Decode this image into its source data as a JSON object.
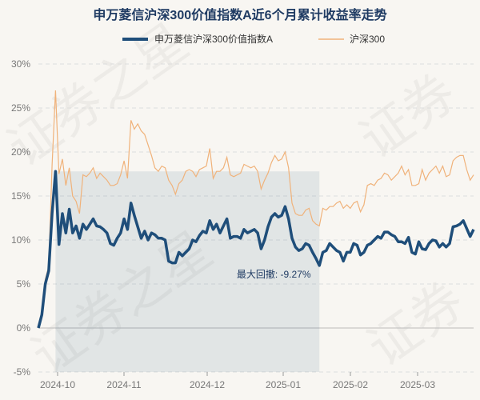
{
  "chart_data": {
    "type": "line",
    "title": "申万菱信沪深300价值指数A近6个月累计收益率走势",
    "legend_position": "top",
    "grid": true,
    "ylim": [
      -5,
      30
    ],
    "yticks": [
      "30%",
      "25%",
      "20%",
      "15%",
      "10%",
      "5%",
      "0%",
      "-5%"
    ],
    "ytick_values": [
      30,
      25,
      20,
      15,
      10,
      5,
      0,
      -5
    ],
    "xticks": [
      "2024-10",
      "2024-11",
      "2024-12",
      "2025-01",
      "2025-02",
      "2025-03"
    ],
    "annotation": "最大回撤: -9.27%",
    "series": [
      {
        "name": "申万菱信沪深300价值指数A",
        "color": "#1f4e7a",
        "values": [
          0,
          1.5,
          5,
          6.5,
          13,
          17.8,
          9.5,
          13,
          10.8,
          13.5,
          10.8,
          11.6,
          10.2,
          11.8,
          11.2,
          11.8,
          12.4,
          11.6,
          11.5,
          11.2,
          10.8,
          9.6,
          9.4,
          10.2,
          10.8,
          12.4,
          11.2,
          14.2,
          12.8,
          11.5,
          10.2,
          11,
          10,
          10.8,
          10.6,
          10.2,
          10.2,
          10,
          7.6,
          7.4,
          7.4,
          8.6,
          8.2,
          8.6,
          9,
          10,
          9.8,
          10.5,
          11,
          10.8,
          12.2,
          11.2,
          11.8,
          10.8,
          11.6,
          12.4,
          10.2,
          10.4,
          10.4,
          10.2,
          11.2,
          10.8,
          11,
          11.2,
          10.8,
          9,
          10,
          11.5,
          12.6,
          13,
          12.6,
          12.8,
          13.8,
          12.4,
          10.2,
          9.2,
          8.8,
          9,
          9.6,
          9.4,
          8.6,
          7.9,
          7.1,
          8.6,
          8.8,
          9.6,
          9.2,
          8.8,
          8.6,
          7.6,
          8.6,
          8.6,
          9.6,
          9.4,
          8.3,
          8.6,
          9.4,
          9.6,
          10,
          10.4,
          10.2,
          10.9,
          10.9,
          10.6,
          10.4,
          9.8,
          9.8,
          9.6,
          10.3,
          8.6,
          8.4,
          9.8,
          9,
          8.9,
          9.6,
          10,
          9.9,
          9.2,
          9.6,
          9.2,
          9.6,
          11.5,
          11.6,
          11.8,
          12.2,
          11.3,
          10.4,
          11.2
        ]
      },
      {
        "name": "沪深300",
        "color": "#f0b27a",
        "values": [
          0,
          1.8,
          5.5,
          7,
          18.5,
          27,
          17.5,
          19.2,
          16.2,
          18.2,
          15,
          14.4,
          13,
          17.4,
          17.2,
          17.6,
          18.2,
          17,
          17.6,
          17.2,
          16.8,
          16.2,
          16.2,
          16.4,
          17.4,
          19,
          17,
          23.6,
          22.6,
          23.2,
          22.4,
          22,
          20.8,
          19.6,
          18.2,
          17.8,
          18.4,
          18.2,
          16.8,
          16.2,
          15.2,
          16.4,
          16.8,
          17.8,
          18,
          17.8,
          17.2,
          18,
          18.2,
          18.4,
          20.4,
          17,
          17.8,
          17.8,
          18.2,
          19.4,
          17.4,
          17.2,
          17.4,
          17.6,
          18.6,
          18.4,
          18.2,
          18.4,
          17.8,
          15.8,
          16.8,
          17.6,
          18.8,
          19.6,
          19,
          19.2,
          20,
          18.2,
          14.2,
          13,
          12.8,
          12.8,
          13.4,
          13.6,
          12.2,
          11.8,
          11.6,
          13.6,
          13.4,
          13.8,
          13.8,
          14.2,
          14.4,
          13.6,
          14,
          13.6,
          14.2,
          14.4,
          13.2,
          14,
          16.2,
          16.4,
          16.2,
          16.8,
          17,
          17.6,
          17.4,
          16.8,
          17.2,
          17.6,
          18.4,
          17.4,
          18,
          16.2,
          16.2,
          16.4,
          18,
          16.8,
          17.6,
          18,
          18.4,
          17.6,
          18.4,
          17.2,
          17.4,
          19,
          19.4,
          19.6,
          19.6,
          18,
          16.8,
          17.4
        ]
      }
    ]
  }
}
